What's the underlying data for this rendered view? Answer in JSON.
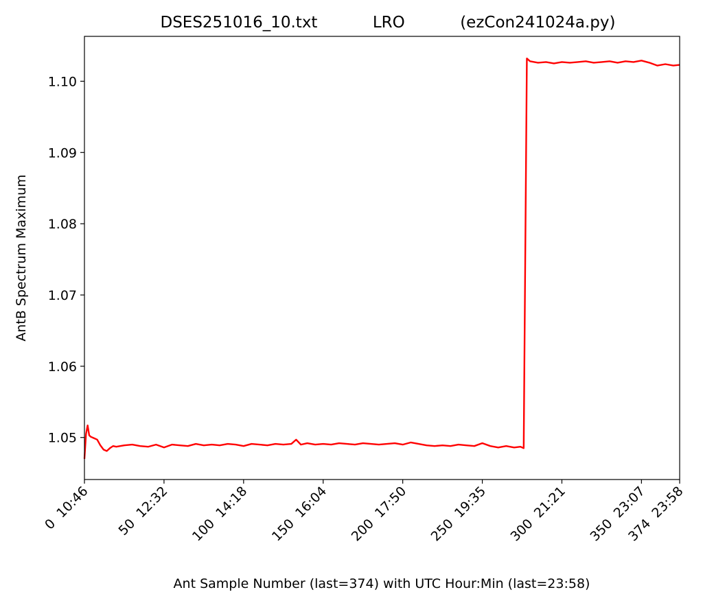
{
  "chart_data": {
    "type": "line",
    "title": "DSES251016_10.txt           LRO           (ezCon241024a.py)",
    "x_label": "Ant Sample Number (last=374) with UTC Hour:Min (last=23:58)",
    "y_label": "AntB Spectrum Maximum",
    "x": [
      0,
      1,
      2,
      3,
      4,
      6,
      8,
      10,
      12,
      14,
      16,
      18,
      20,
      25,
      30,
      35,
      40,
      45,
      50,
      55,
      60,
      65,
      70,
      75,
      80,
      85,
      90,
      95,
      100,
      105,
      110,
      115,
      120,
      125,
      130,
      133,
      136,
      140,
      145,
      150,
      155,
      160,
      165,
      170,
      175,
      180,
      185,
      190,
      195,
      200,
      205,
      210,
      215,
      220,
      225,
      230,
      235,
      240,
      245,
      250,
      255,
      260,
      265,
      270,
      274,
      276,
      278,
      280,
      285,
      290,
      295,
      300,
      305,
      310,
      315,
      320,
      325,
      330,
      335,
      340,
      345,
      350,
      355,
      360,
      365,
      370,
      374
    ],
    "series": [
      {
        "name": "AntB",
        "color": "#ff0000",
        "values": [
          1.047,
          1.0505,
          1.0517,
          1.0503,
          1.0501,
          1.0499,
          1.0497,
          1.0489,
          1.0483,
          1.0481,
          1.0485,
          1.0488,
          1.0487,
          1.0489,
          1.049,
          1.0488,
          1.0487,
          1.049,
          1.0486,
          1.049,
          1.0489,
          1.0488,
          1.0491,
          1.0489,
          1.049,
          1.0489,
          1.0491,
          1.049,
          1.0488,
          1.0491,
          1.049,
          1.0489,
          1.0491,
          1.049,
          1.0491,
          1.0497,
          1.049,
          1.0492,
          1.049,
          1.0491,
          1.049,
          1.0492,
          1.0491,
          1.049,
          1.0492,
          1.0491,
          1.049,
          1.0491,
          1.0492,
          1.049,
          1.0493,
          1.0491,
          1.0489,
          1.0488,
          1.0489,
          1.0488,
          1.049,
          1.0489,
          1.0488,
          1.0492,
          1.0488,
          1.0486,
          1.0488,
          1.0486,
          1.0487,
          1.0485,
          1.1032,
          1.1028,
          1.1026,
          1.1027,
          1.1025,
          1.1027,
          1.1026,
          1.1027,
          1.1028,
          1.1026,
          1.1027,
          1.1028,
          1.1026,
          1.1028,
          1.1027,
          1.1029,
          1.1026,
          1.1022,
          1.1024,
          1.1022,
          1.1023
        ]
      }
    ],
    "xlim": [
      0,
      374
    ],
    "xticks": [
      {
        "value": 0,
        "label": "0  10:46"
      },
      {
        "value": 50,
        "label": "50  12:32"
      },
      {
        "value": 100,
        "label": "100  14:18"
      },
      {
        "value": 150,
        "label": "150  16:04"
      },
      {
        "value": 200,
        "label": "200  17:50"
      },
      {
        "value": 250,
        "label": "250  19:35"
      },
      {
        "value": 300,
        "label": "300  21:21"
      },
      {
        "value": 350,
        "label": "350  23:07"
      },
      {
        "value": 374,
        "label": "374  23:58"
      }
    ],
    "ylim": [
      1.0441,
      1.1063
    ],
    "yticks": [
      1.05,
      1.06,
      1.07,
      1.08,
      1.09,
      {
        "value": 1.1,
        "label": "1.10"
      }
    ],
    "grid": false
  }
}
